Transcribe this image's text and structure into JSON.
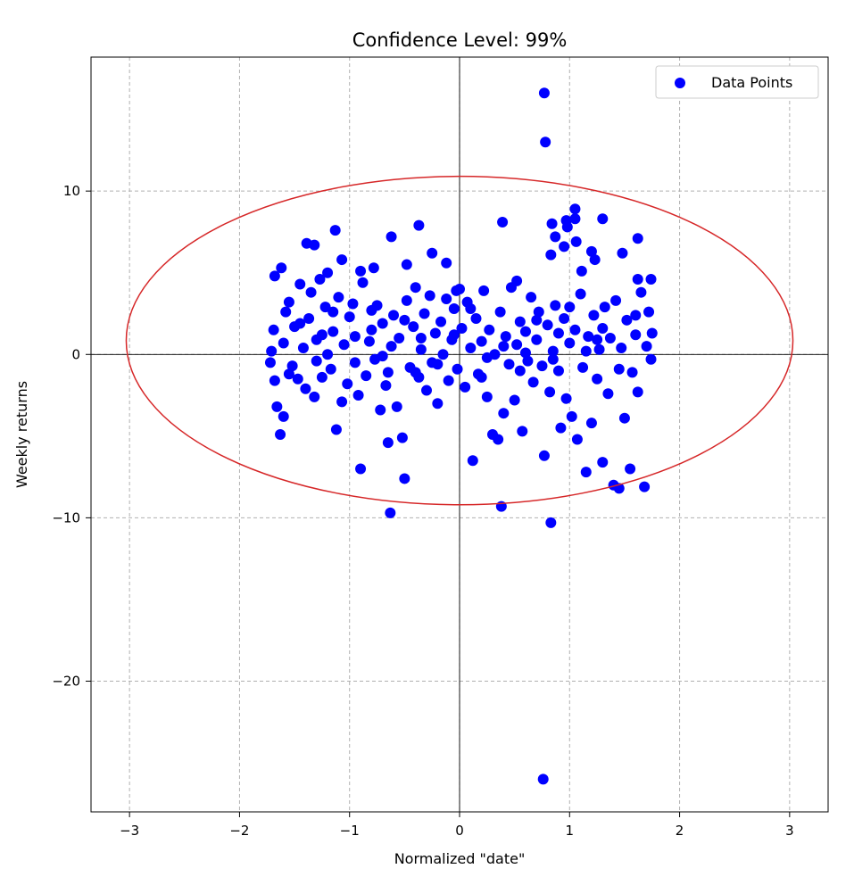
{
  "chart_data": {
    "type": "scatter",
    "title": "Confidence Level: 99%",
    "xlabel": "Normalized \"date\"",
    "ylabel": "Weekly returns",
    "xlim": [
      -3.35,
      3.35
    ],
    "ylim": [
      -28.0,
      18.2
    ],
    "xticks": [
      -3,
      -2,
      -1,
      0,
      1,
      2,
      3
    ],
    "yticks": [
      -20,
      -10,
      0,
      10
    ],
    "grid": true,
    "legend_position": "top-right",
    "series": [
      {
        "name": "Data Points",
        "color": "#0000ff",
        "points": [
          [
            0.77,
            16.0
          ],
          [
            0.78,
            13.0
          ],
          [
            0.76,
            -26.0
          ],
          [
            0.83,
            -10.3
          ],
          [
            0.38,
            -9.3
          ],
          [
            -0.63,
            -9.7
          ],
          [
            1.05,
            8.9
          ],
          [
            0.84,
            8.0
          ],
          [
            0.97,
            8.2
          ],
          [
            1.3,
            8.3
          ],
          [
            0.39,
            8.1
          ],
          [
            -0.37,
            7.9
          ],
          [
            1.05,
            8.3
          ],
          [
            0.98,
            7.8
          ],
          [
            -1.13,
            7.6
          ],
          [
            -0.62,
            7.2
          ],
          [
            1.62,
            7.1
          ],
          [
            0.87,
            7.2
          ],
          [
            1.06,
            6.9
          ],
          [
            -1.39,
            6.8
          ],
          [
            -1.32,
            6.7
          ],
          [
            0.95,
            6.6
          ],
          [
            1.2,
            6.3
          ],
          [
            -0.25,
            6.2
          ],
          [
            1.48,
            6.2
          ],
          [
            0.83,
            6.1
          ],
          [
            -0.48,
            5.5
          ],
          [
            -0.12,
            5.6
          ],
          [
            -1.07,
            5.8
          ],
          [
            1.23,
            5.8
          ],
          [
            -1.62,
            5.3
          ],
          [
            -1.2,
            5.0
          ],
          [
            0.0,
            4.0
          ],
          [
            -0.03,
            3.9
          ],
          [
            1.62,
            4.6
          ],
          [
            -0.9,
            5.1
          ],
          [
            -0.78,
            5.3
          ],
          [
            1.11,
            5.1
          ],
          [
            1.74,
            4.6
          ],
          [
            -1.68,
            4.8
          ],
          [
            0.52,
            4.5
          ],
          [
            -1.72,
            -0.5
          ],
          [
            -1.71,
            0.2
          ],
          [
            -1.69,
            1.5
          ],
          [
            -1.68,
            -1.6
          ],
          [
            -1.66,
            -3.2
          ],
          [
            -1.63,
            -4.9
          ],
          [
            -1.6,
            -3.8
          ],
          [
            -1.58,
            2.6
          ],
          [
            -1.55,
            3.2
          ],
          [
            -1.52,
            -0.7
          ],
          [
            -1.5,
            1.7
          ],
          [
            -1.47,
            -1.5
          ],
          [
            -1.45,
            4.3
          ],
          [
            -1.42,
            0.4
          ],
          [
            -1.4,
            -2.1
          ],
          [
            -1.37,
            2.2
          ],
          [
            -1.35,
            3.8
          ],
          [
            -1.32,
            -2.6
          ],
          [
            -1.3,
            0.9
          ],
          [
            -1.27,
            4.6
          ],
          [
            -1.25,
            -1.4
          ],
          [
            -1.22,
            2.9
          ],
          [
            -1.2,
            0.0
          ],
          [
            -1.17,
            -0.9
          ],
          [
            -1.15,
            1.4
          ],
          [
            -1.12,
            -4.6
          ],
          [
            -1.1,
            3.5
          ],
          [
            -1.07,
            -2.9
          ],
          [
            -1.05,
            0.6
          ],
          [
            -1.02,
            -1.8
          ],
          [
            -1.0,
            2.3
          ],
          [
            -0.97,
            3.1
          ],
          [
            -0.95,
            1.1
          ],
          [
            -0.92,
            -2.5
          ],
          [
            -0.9,
            -7.0
          ],
          [
            -0.88,
            4.4
          ],
          [
            -0.85,
            -1.3
          ],
          [
            -0.82,
            0.8
          ],
          [
            -0.8,
            2.7
          ],
          [
            -0.77,
            -0.3
          ],
          [
            -0.75,
            3.0
          ],
          [
            -0.72,
            -3.4
          ],
          [
            -0.7,
            1.9
          ],
          [
            -0.67,
            -1.9
          ],
          [
            -0.65,
            -5.4
          ],
          [
            -0.62,
            0.5
          ],
          [
            -0.6,
            2.4
          ],
          [
            -0.57,
            -3.2
          ],
          [
            -0.55,
            1.0
          ],
          [
            -0.52,
            -5.1
          ],
          [
            -0.5,
            -7.6
          ],
          [
            -0.48,
            3.3
          ],
          [
            -0.45,
            -0.8
          ],
          [
            -0.42,
            1.7
          ],
          [
            -0.4,
            4.1
          ],
          [
            -0.37,
            -1.4
          ],
          [
            -0.35,
            0.3
          ],
          [
            -0.32,
            2.5
          ],
          [
            -0.3,
            -2.2
          ],
          [
            -0.27,
            3.6
          ],
          [
            -0.25,
            -0.5
          ],
          [
            -0.22,
            1.3
          ],
          [
            -0.2,
            -3.0
          ],
          [
            -0.17,
            2.0
          ],
          [
            -0.15,
            0.0
          ],
          [
            -0.12,
            3.4
          ],
          [
            -0.1,
            -1.6
          ],
          [
            -0.07,
            0.9
          ],
          [
            -0.05,
            2.8
          ],
          [
            -0.02,
            -0.9
          ],
          [
            0.02,
            1.6
          ],
          [
            0.05,
            -2.0
          ],
          [
            0.07,
            3.2
          ],
          [
            0.1,
            0.4
          ],
          [
            0.12,
            -6.5
          ],
          [
            0.15,
            2.2
          ],
          [
            0.17,
            -1.2
          ],
          [
            0.2,
            0.8
          ],
          [
            0.22,
            3.9
          ],
          [
            0.25,
            -2.6
          ],
          [
            0.27,
            1.5
          ],
          [
            0.3,
            -4.9
          ],
          [
            0.32,
            0.0
          ],
          [
            0.35,
            -5.2
          ],
          [
            0.37,
            2.6
          ],
          [
            0.4,
            -3.6
          ],
          [
            0.42,
            1.1
          ],
          [
            0.45,
            -0.6
          ],
          [
            0.47,
            4.1
          ],
          [
            0.5,
            -2.8
          ],
          [
            0.52,
            0.6
          ],
          [
            0.55,
            2.0
          ],
          [
            0.57,
            -4.7
          ],
          [
            0.6,
            1.4
          ],
          [
            0.62,
            -0.4
          ],
          [
            0.65,
            3.5
          ],
          [
            0.67,
            -1.7
          ],
          [
            0.7,
            0.9
          ],
          [
            0.72,
            2.6
          ],
          [
            0.75,
            -0.7
          ],
          [
            0.77,
            -6.2
          ],
          [
            0.8,
            1.8
          ],
          [
            0.82,
            -2.3
          ],
          [
            0.85,
            0.2
          ],
          [
            0.87,
            3.0
          ],
          [
            0.9,
            -1.0
          ],
          [
            0.92,
            -4.5
          ],
          [
            0.95,
            2.2
          ],
          [
            0.97,
            -2.7
          ],
          [
            1.0,
            0.7
          ],
          [
            1.02,
            -3.8
          ],
          [
            1.05,
            1.5
          ],
          [
            1.07,
            -5.2
          ],
          [
            1.1,
            3.7
          ],
          [
            1.12,
            -0.8
          ],
          [
            1.15,
            -7.2
          ],
          [
            1.17,
            1.1
          ],
          [
            1.2,
            -4.2
          ],
          [
            1.22,
            2.4
          ],
          [
            1.25,
            -1.5
          ],
          [
            1.27,
            0.3
          ],
          [
            1.3,
            -6.6
          ],
          [
            1.32,
            2.9
          ],
          [
            1.35,
            -2.4
          ],
          [
            1.37,
            1.0
          ],
          [
            1.4,
            -8.0
          ],
          [
            1.42,
            3.3
          ],
          [
            1.45,
            -8.2
          ],
          [
            1.47,
            0.4
          ],
          [
            1.5,
            -3.9
          ],
          [
            1.52,
            2.1
          ],
          [
            1.55,
            -7.0
          ],
          [
            1.57,
            -1.1
          ],
          [
            1.6,
            1.2
          ],
          [
            1.62,
            -2.3
          ],
          [
            1.65,
            3.8
          ],
          [
            1.68,
            -8.1
          ],
          [
            1.7,
            0.5
          ],
          [
            1.72,
            2.6
          ],
          [
            1.74,
            -0.3
          ],
          [
            1.75,
            1.3
          ],
          [
            -1.6,
            0.7
          ],
          [
            -1.45,
            1.9
          ],
          [
            -1.3,
            -0.4
          ],
          [
            -1.15,
            2.6
          ],
          [
            -0.95,
            -0.5
          ],
          [
            -0.8,
            1.5
          ],
          [
            -0.65,
            -1.1
          ],
          [
            -0.5,
            2.1
          ],
          [
            -0.35,
            1.0
          ],
          [
            -0.2,
            -0.6
          ],
          [
            -0.05,
            1.2
          ],
          [
            0.1,
            2.8
          ],
          [
            0.25,
            -0.2
          ],
          [
            0.4,
            0.5
          ],
          [
            0.55,
            -1.0
          ],
          [
            0.7,
            2.1
          ],
          [
            0.85,
            -0.3
          ],
          [
            1.0,
            2.9
          ],
          [
            1.15,
            0.2
          ],
          [
            1.3,
            1.6
          ],
          [
            1.45,
            -0.9
          ],
          [
            1.6,
            2.4
          ],
          [
            -1.55,
            -1.2
          ],
          [
            -1.25,
            1.2
          ],
          [
            -0.7,
            -0.1
          ],
          [
            -0.4,
            -1.1
          ],
          [
            0.2,
            -1.4
          ],
          [
            0.6,
            0.1
          ],
          [
            0.9,
            1.3
          ],
          [
            1.25,
            0.9
          ]
        ]
      }
    ],
    "ellipse": {
      "center": [
        0.0,
        0.85
      ],
      "semi_axis_x": 3.03,
      "semi_axis_y": 10.05,
      "color": "#d62728"
    }
  }
}
